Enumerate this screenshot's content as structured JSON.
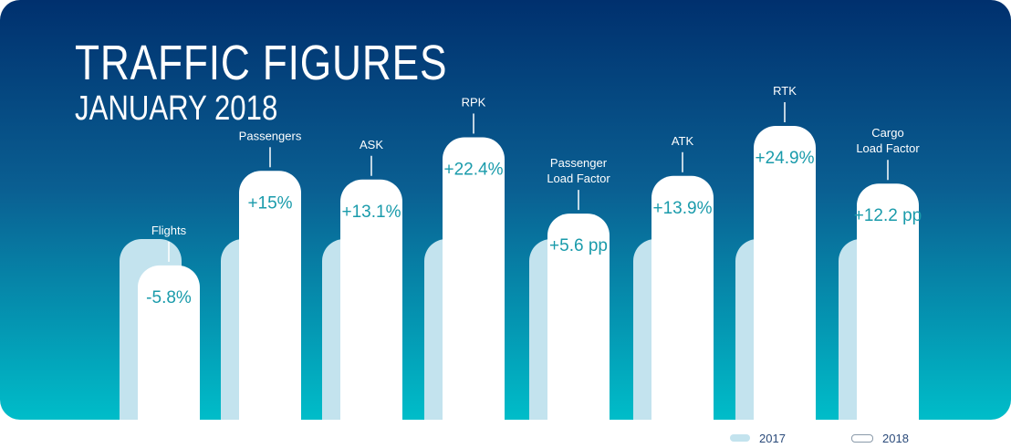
{
  "chart_data": {
    "type": "bar",
    "title": "TRAFFIC FIGURES",
    "subtitle": "JANUARY 2018",
    "categories": [
      "Flights",
      "Passengers",
      "ASK",
      "RPK",
      "Passenger Load Factor",
      "ATK",
      "RTK",
      "Cargo Load Factor"
    ],
    "category_lines": [
      [
        "Flights"
      ],
      [
        "Passengers"
      ],
      [
        "ASK"
      ],
      [
        "RPK"
      ],
      [
        "Passenger",
        "Load Factor"
      ],
      [
        "ATK"
      ],
      [
        "RTK"
      ],
      [
        "Cargo",
        "Load Factor"
      ]
    ],
    "series": [
      {
        "name": "2017",
        "values": [
          100,
          100,
          100,
          100,
          100,
          100,
          100,
          100
        ]
      },
      {
        "name": "2018",
        "values": [
          94.2,
          115,
          113.1,
          122.4,
          105.6,
          113.9,
          124.9,
          112.2
        ]
      }
    ],
    "change_labels": [
      "-5.8%",
      "+15%",
      "+13.1%",
      "+22.4%",
      "+5.6 pp",
      "+13.9%",
      "+24.9%",
      "+12.2 pp"
    ],
    "legend": [
      {
        "label": "2017",
        "color": "#c3e3ee"
      },
      {
        "label": "2018",
        "color": "#ffffff"
      }
    ],
    "colors": {
      "background_top": "#00306e",
      "background_mid": "#0a6a96",
      "background_bottom": "#00bdc9",
      "bar_2017": "#c3e3ee",
      "bar_2018": "#ffffff",
      "value_text": "#1a9bab",
      "label_text": "#ffffff",
      "legend_text": "#2a4a7a"
    }
  }
}
